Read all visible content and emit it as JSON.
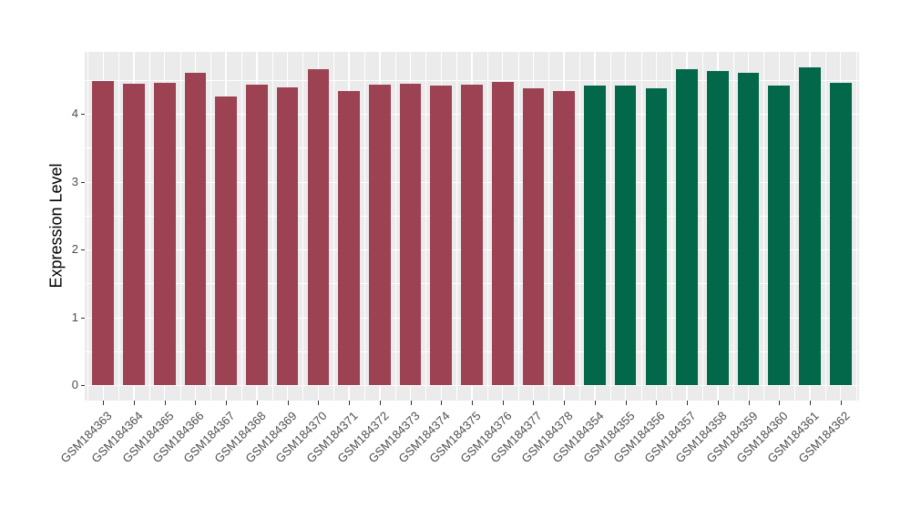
{
  "figure": {
    "background": "#FFFFFF",
    "panel_background": "#EBEBEB",
    "grid_color": "#FFFFFF",
    "axis_text_color": "#4D4D4D",
    "axis_title_color": "#000000",
    "tick_mark_color": "#333333"
  },
  "chart_data": {
    "type": "bar",
    "title": "",
    "xlabel": "",
    "ylabel": "Expression Level",
    "categories": [
      "GSM184363",
      "GSM184364",
      "GSM184365",
      "GSM184366",
      "GSM184367",
      "GSM184368",
      "GSM184369",
      "GSM184370",
      "GSM184371",
      "GSM184372",
      "GSM184373",
      "GSM184374",
      "GSM184375",
      "GSM184376",
      "GSM184377",
      "GSM184378",
      "GSM184354",
      "GSM184355",
      "GSM184356",
      "GSM184357",
      "GSM184358",
      "GSM184359",
      "GSM184360",
      "GSM184361",
      "GSM184362"
    ],
    "values": [
      4.48,
      4.44,
      4.46,
      4.61,
      4.25,
      4.43,
      4.39,
      4.66,
      4.34,
      4.43,
      4.44,
      4.42,
      4.43,
      4.47,
      4.38,
      4.34,
      4.41,
      4.42,
      4.38,
      4.66,
      4.63,
      4.6,
      4.41,
      4.69,
      4.46
    ],
    "bar_colors": [
      "#9C4253",
      "#9C4253",
      "#9C4253",
      "#9C4253",
      "#9C4253",
      "#9C4253",
      "#9C4253",
      "#9C4253",
      "#9C4253",
      "#9C4253",
      "#9C4253",
      "#9C4253",
      "#9C4253",
      "#9C4253",
      "#9C4253",
      "#9C4253",
      "#03684A",
      "#03684A",
      "#03684A",
      "#03684A",
      "#03684A",
      "#03684A",
      "#03684A",
      "#03684A",
      "#03684A"
    ],
    "palette": {
      "group1_color": "#9C4253",
      "group2_color": "#03684A"
    },
    "ylim": [
      0,
      4.91
    ],
    "yticks": [
      0,
      1,
      2,
      3,
      4
    ],
    "y_minor_ticks": [
      0.5,
      1.5,
      2.5,
      3.5,
      4.5
    ],
    "x_tick_rotation_deg": 45,
    "grid": "major+minor",
    "legend_position": "none"
  }
}
